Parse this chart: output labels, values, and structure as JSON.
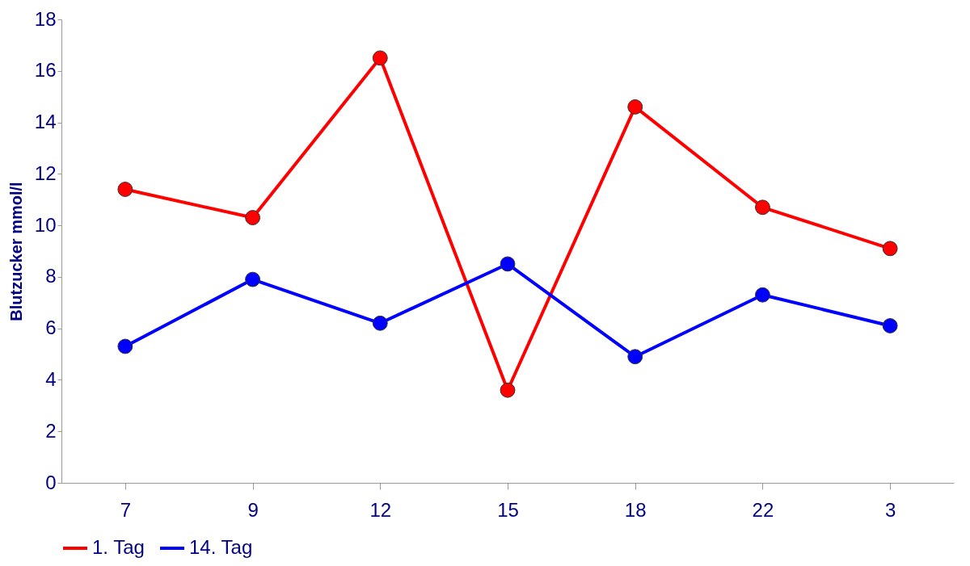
{
  "chart_data": {
    "type": "line",
    "ylabel": "Blutzucker mmol/l",
    "categories": [
      "7",
      "9",
      "12",
      "15",
      "18",
      "22",
      "3"
    ],
    "series": [
      {
        "name": "1. Tag",
        "color": "#ff0000",
        "values": [
          11.4,
          10.3,
          16.5,
          3.6,
          14.6,
          10.7,
          9.1
        ]
      },
      {
        "name": "14. Tag",
        "color": "#0000ff",
        "values": [
          5.3,
          7.9,
          6.2,
          8.5,
          4.9,
          7.3,
          6.1
        ]
      }
    ],
    "ylim": [
      0,
      18
    ],
    "yticks": [
      0,
      2,
      4,
      6,
      8,
      10,
      12,
      14,
      16,
      18
    ],
    "grid": false,
    "legend": "bottom",
    "marker": "circle",
    "line_style": "solid"
  }
}
